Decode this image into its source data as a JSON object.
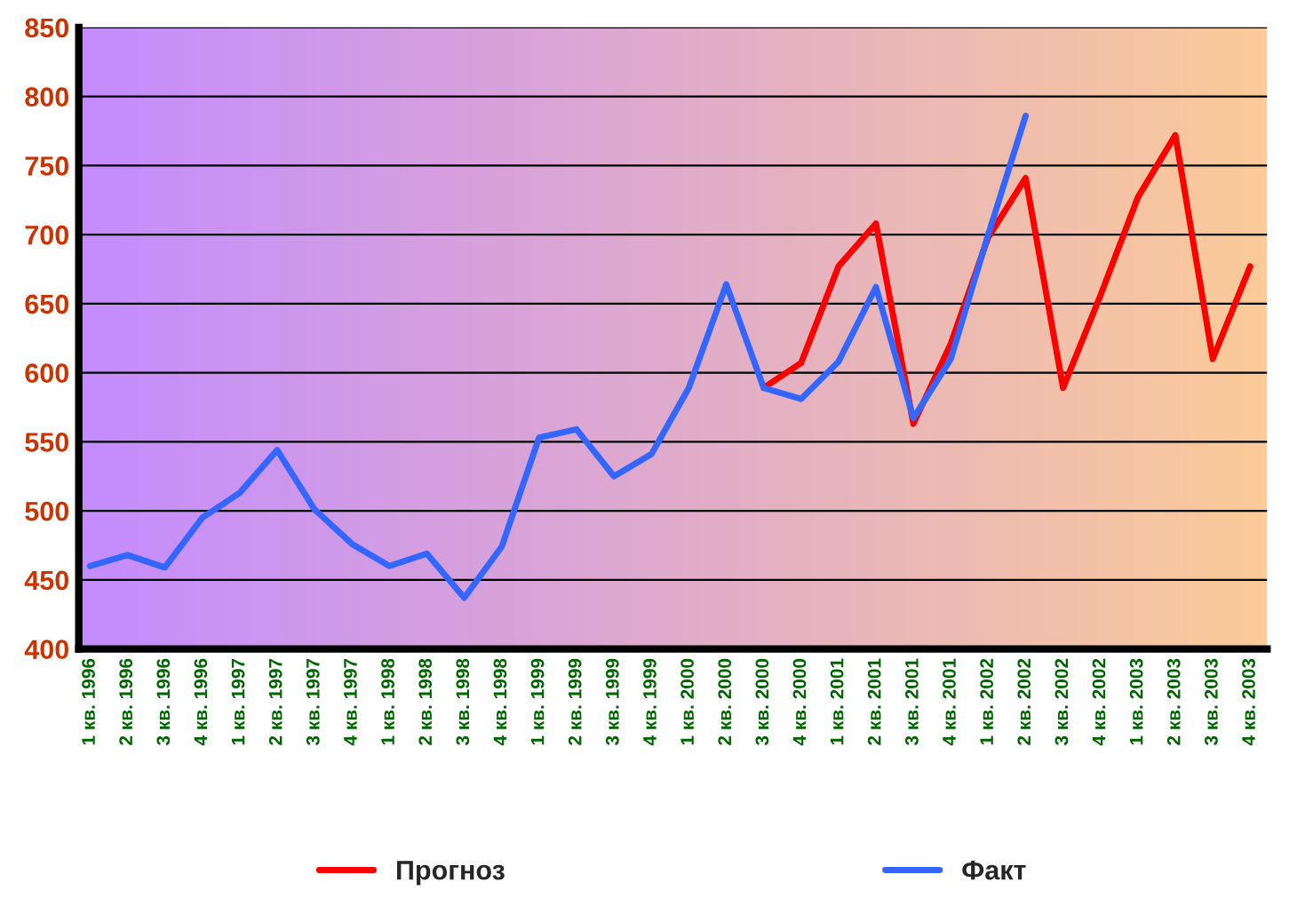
{
  "chart_data": {
    "type": "line",
    "categories": [
      "1 кв. 1996",
      "2 кв. 1996",
      "3 кв. 1996",
      "4 кв. 1996",
      "1 кв. 1997",
      "2 кв. 1997",
      "3 кв. 1997",
      "4 кв. 1997",
      "1 кв. 1998",
      "2 кв. 1998",
      "3 кв. 1998",
      "4 кв. 1998",
      "1 кв. 1999",
      "2 кв. 1999",
      "3 кв. 1999",
      "4 кв. 1999",
      "1 кв. 2000",
      "2 кв. 2000",
      "3 кв. 2000",
      "4 кв. 2000",
      "1 кв. 2001",
      "2 кв. 2001",
      "3 кв. 2001",
      "4 кв. 2001",
      "1 кв. 2002",
      "2 кв. 2002",
      "3 кв. 2002",
      "4 кв. 2002",
      "1 кв. 2003",
      "2 кв. 2003",
      "3 кв. 2003",
      "4 кв. 2003"
    ],
    "series": [
      {
        "name": "Прогноз",
        "color": "#ff0000",
        "values": [
          null,
          null,
          null,
          null,
          null,
          null,
          null,
          null,
          null,
          null,
          null,
          null,
          null,
          null,
          null,
          null,
          null,
          null,
          589,
          607,
          677,
          708,
          563,
          621,
          698,
          741,
          589,
          656,
          727,
          772,
          610,
          677
        ]
      },
      {
        "name": "Факт",
        "color": "#3366ff",
        "values": [
          460,
          468,
          459,
          495,
          513,
          544,
          501,
          476,
          460,
          469,
          437,
          474,
          553,
          559,
          525,
          541,
          589,
          664,
          589,
          581,
          608,
          662,
          567,
          610,
          700,
          786,
          null,
          null,
          null,
          null,
          null,
          null
        ]
      }
    ],
    "ylim": [
      400,
      850
    ],
    "yticks": [
      400,
      450,
      500,
      550,
      600,
      650,
      700,
      750,
      800,
      850
    ],
    "grid": "y",
    "legend": "bottom",
    "marker": "none",
    "line_style": "solid"
  }
}
